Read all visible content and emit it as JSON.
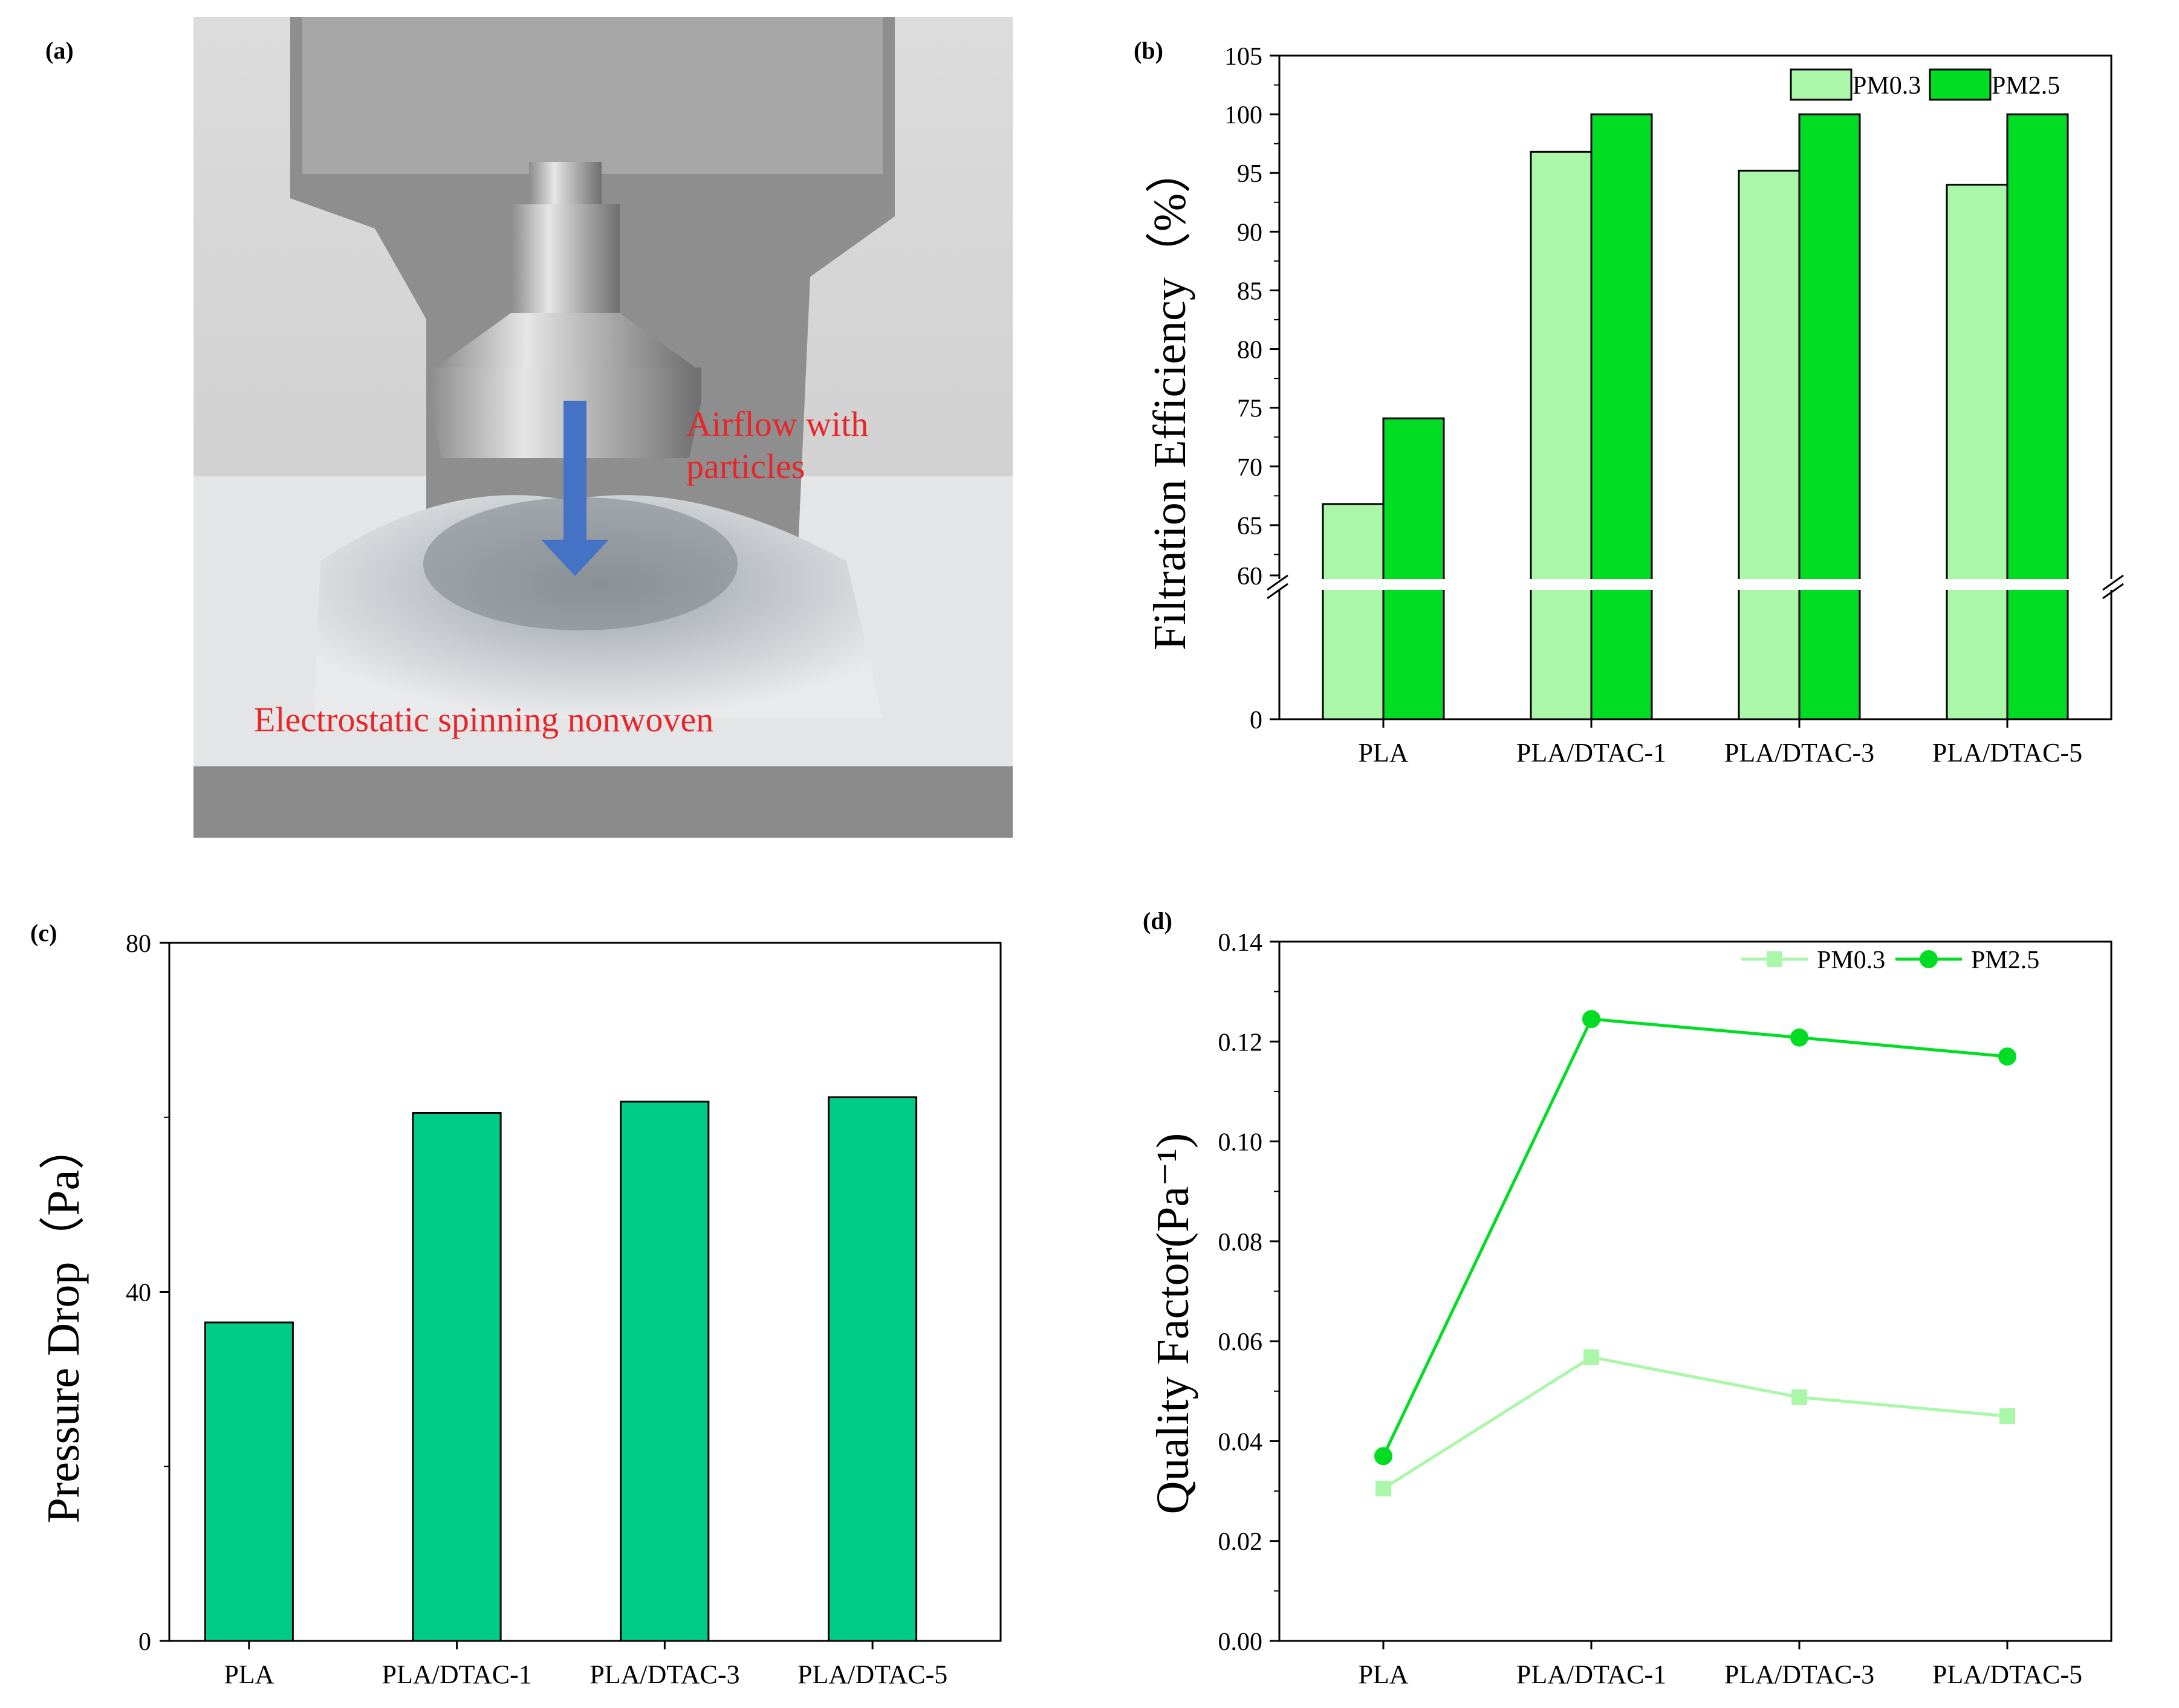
{
  "panels": {
    "a": "(a)",
    "b": "(b)",
    "c": "(c)",
    "d": "(d)"
  },
  "photo": {
    "airflow_label_line1": "Airflow with",
    "airflow_label_line2": "particles",
    "material_label": "Electrostatic spinning nonwoven",
    "colors": {
      "annotation": "#e8262a",
      "arrow": "#4472c4"
    }
  },
  "chart_data": [
    {
      "id": "b",
      "type": "bar",
      "title": "",
      "xlabel": "",
      "ylabel": "Filtration Efficiency（%）",
      "categories": [
        "PLA",
        "PLA/DTAC-1",
        "PLA/DTAC-3",
        "PLA/DTAC-5"
      ],
      "series": [
        {
          "name": "PM0.3",
          "values": [
            66.8,
            96.8,
            95.2,
            94.0
          ],
          "color": "#aaf7aa"
        },
        {
          "name": "PM2.5",
          "values": [
            74.1,
            100,
            100,
            100
          ],
          "color": "#00dd22"
        }
      ],
      "axis_break": [
        0,
        60
      ],
      "ylim": [
        60,
        105
      ],
      "y_ticks_upper": [
        "60",
        "65",
        "70",
        "75",
        "80",
        "85",
        "90",
        "95",
        "100",
        "105"
      ],
      "y_ticks_lower": [
        "0"
      ],
      "legend": "top-right"
    },
    {
      "id": "c",
      "type": "bar",
      "title": "",
      "xlabel": "",
      "ylabel": "Pressure Drop（Pa）",
      "categories": [
        "PLA",
        "PLA/DTAC-1",
        "PLA/DTAC-3",
        "PLA/DTAC-5"
      ],
      "values": [
        36.5,
        60.5,
        61.8,
        62.3
      ],
      "color": "#00cc88",
      "ylim": [
        0,
        80
      ],
      "y_ticks": [
        "0",
        "40",
        "80"
      ]
    },
    {
      "id": "d",
      "type": "line",
      "title": "",
      "xlabel": "",
      "ylabel": "Quality Factor(Pa⁻¹)",
      "categories": [
        "PLA",
        "PLA/DTAC-1",
        "PLA/DTAC-3",
        "PLA/DTAC-5"
      ],
      "series": [
        {
          "name": "PM0.3",
          "values": [
            0.0305,
            0.0568,
            0.0488,
            0.045
          ],
          "color": "#aaf7aa",
          "marker": "square"
        },
        {
          "name": "PM2.5",
          "values": [
            0.037,
            0.1245,
            0.1208,
            0.117
          ],
          "color": "#00dd22",
          "marker": "circle"
        }
      ],
      "ylim": [
        0,
        0.14
      ],
      "y_ticks": [
        "0.00",
        "0.02",
        "0.04",
        "0.06",
        "0.08",
        "0.10",
        "0.12",
        "0.14"
      ],
      "legend": "top-right"
    }
  ]
}
